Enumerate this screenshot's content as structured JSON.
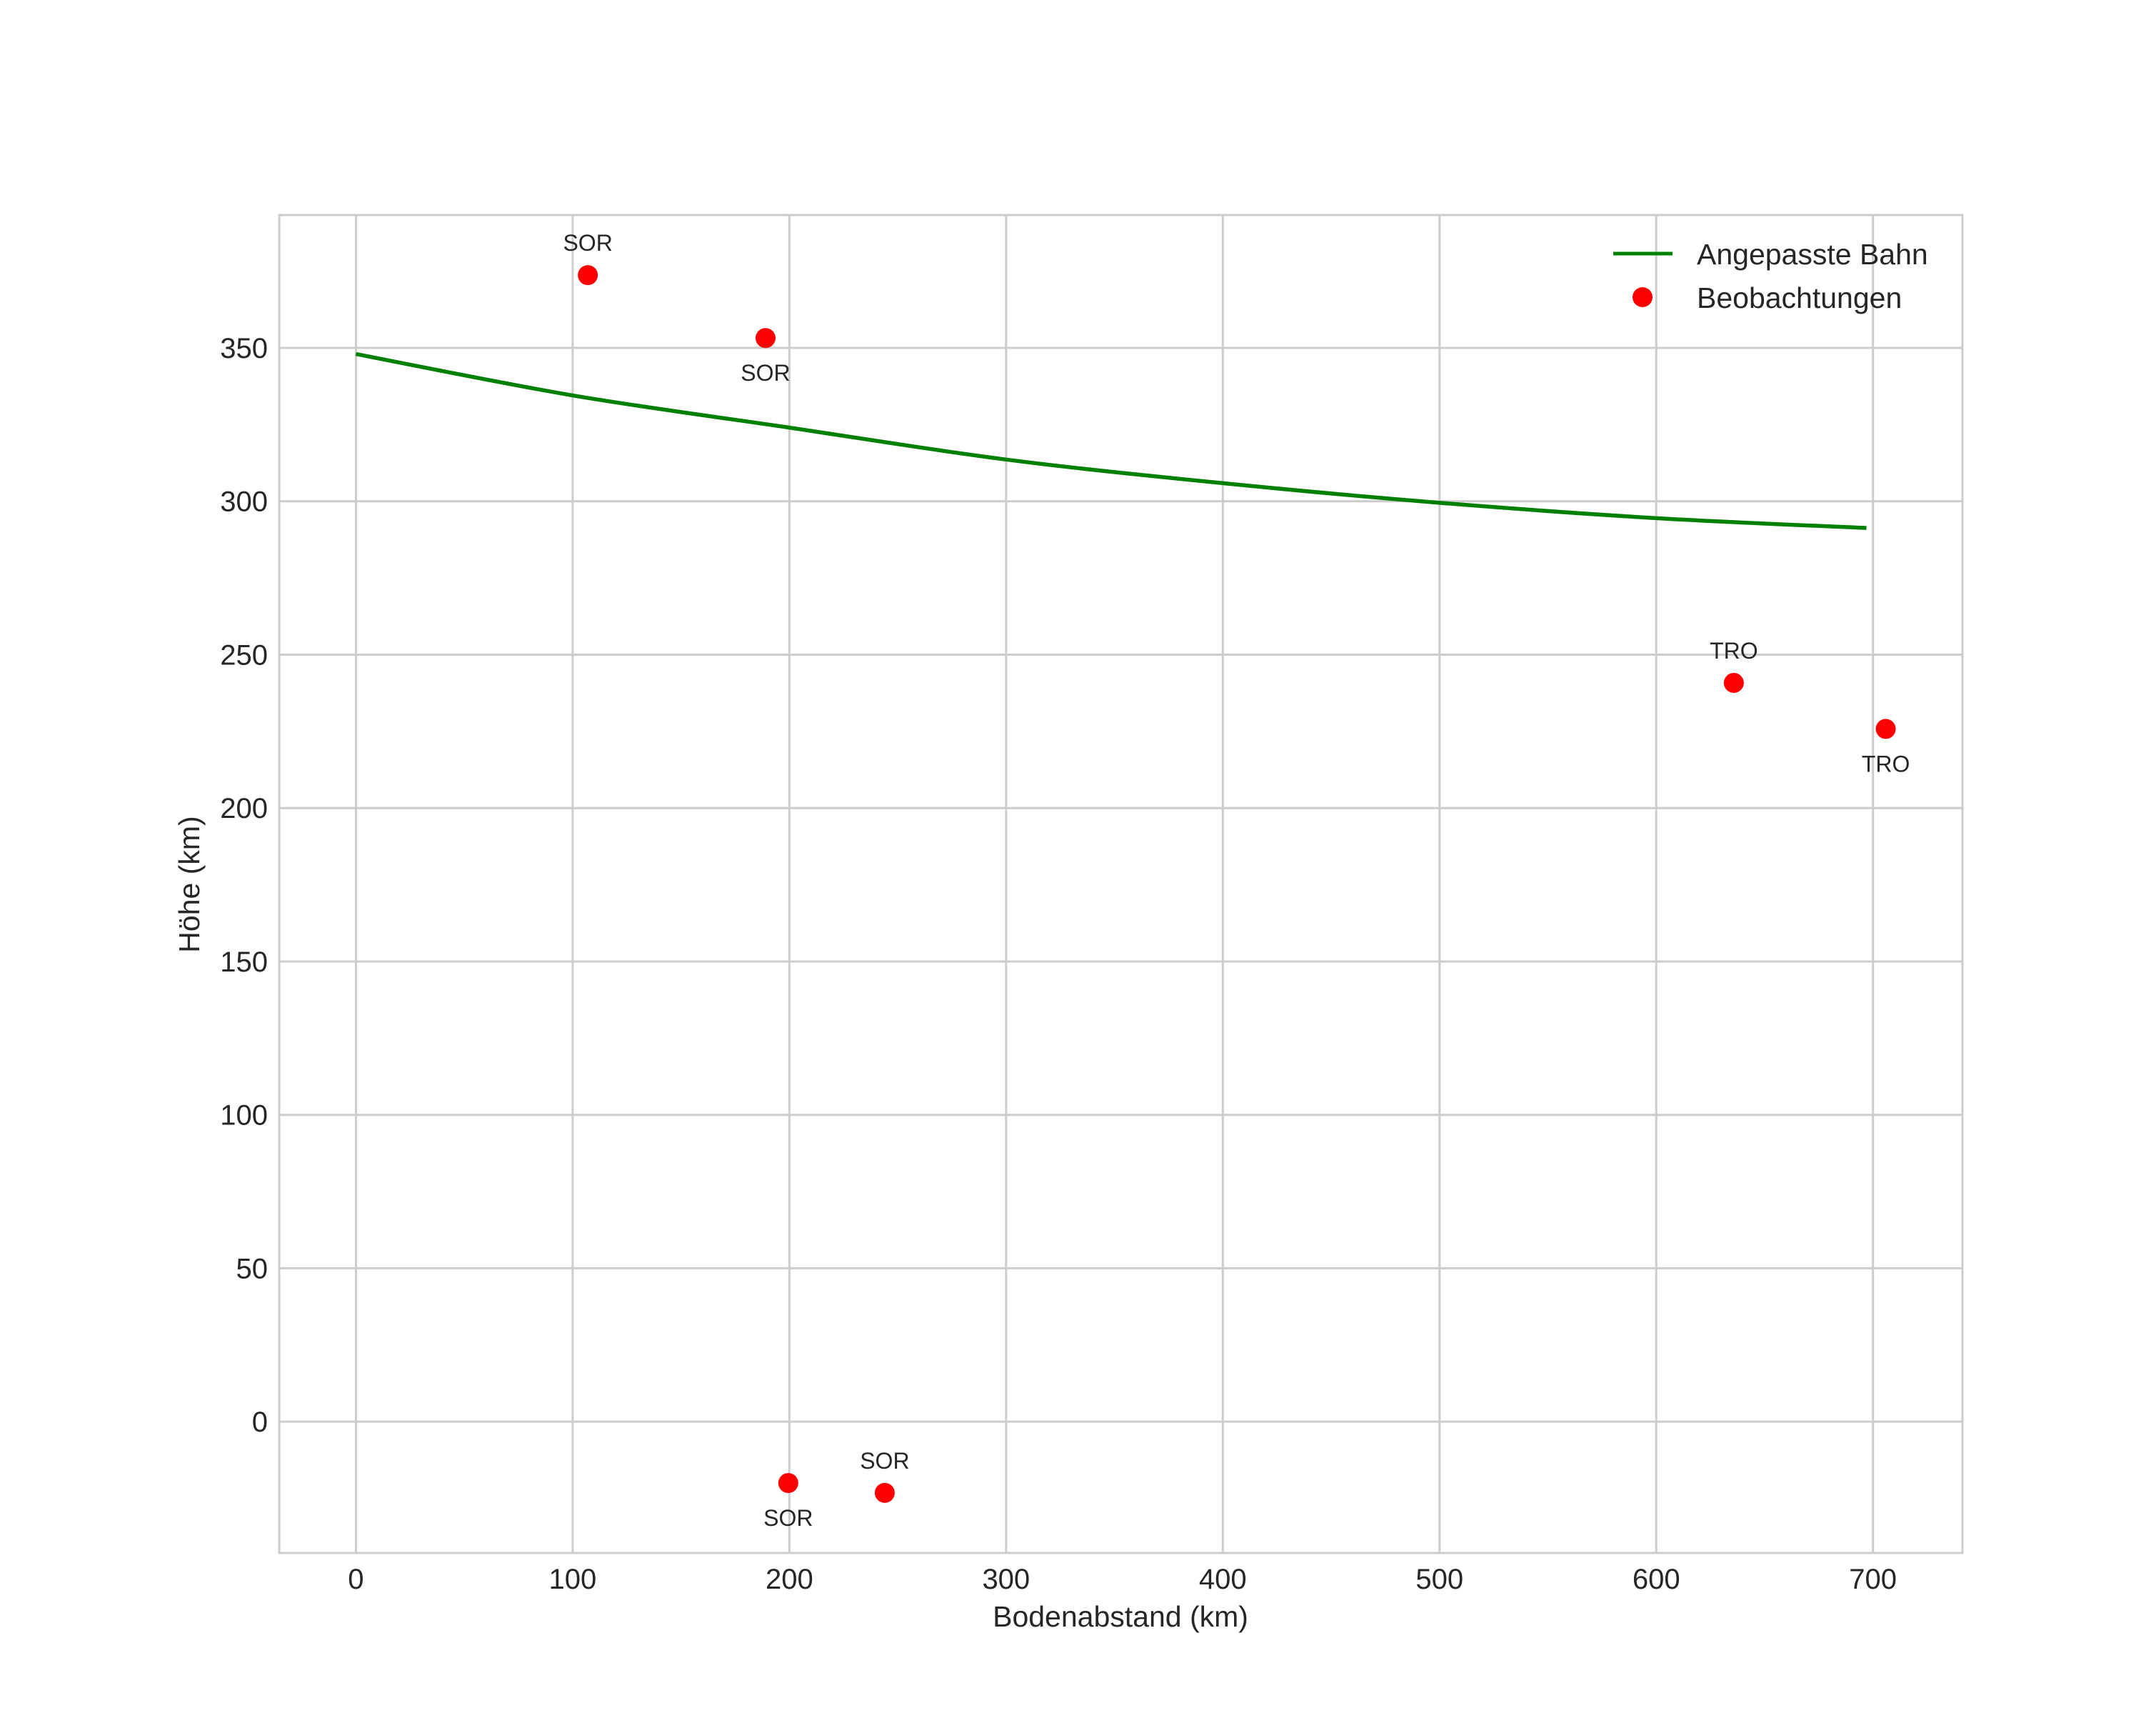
{
  "chart_data": {
    "type": "scatter",
    "title": "",
    "xlabel": "Bodenabstand (km)",
    "ylabel": "Höhe (km)",
    "xlim": [
      -35.4,
      741.3
    ],
    "ylim": [
      -42.8,
      393.3
    ],
    "xticks": [
      0,
      100,
      200,
      300,
      400,
      500,
      600,
      700
    ],
    "yticks": [
      0,
      50,
      100,
      150,
      200,
      250,
      300,
      350
    ],
    "grid": true,
    "legend": {
      "placement": "top-right",
      "entries": [
        "Angepasste Bahn",
        "Beobachtungen"
      ]
    },
    "series": [
      {
        "name": "Angepasste Bahn",
        "type": "line",
        "color": "#008000",
        "x": [
          0,
          100,
          200,
          300,
          400,
          500,
          600,
          697
        ],
        "y": [
          348,
          334.5,
          324,
          313.6,
          305.9,
          299.5,
          294.5,
          291.3
        ]
      },
      {
        "name": "Beobachtungen",
        "type": "scatter",
        "color": "#ff0000",
        "points": [
          {
            "x": 107,
            "y": 373.7,
            "label": "SOR",
            "label_pos": "above"
          },
          {
            "x": 189,
            "y": 353.2,
            "label": "SOR",
            "label_pos": "below"
          },
          {
            "x": 199.5,
            "y": -20,
            "label": "SOR",
            "label_pos": "below"
          },
          {
            "x": 244,
            "y": -23.2,
            "label": "SOR",
            "label_pos": "above"
          },
          {
            "x": 635.8,
            "y": 240.8,
            "label": "TRO",
            "label_pos": "above"
          },
          {
            "x": 705.9,
            "y": 225.8,
            "label": "TRO",
            "label_pos": "below"
          }
        ]
      }
    ]
  }
}
